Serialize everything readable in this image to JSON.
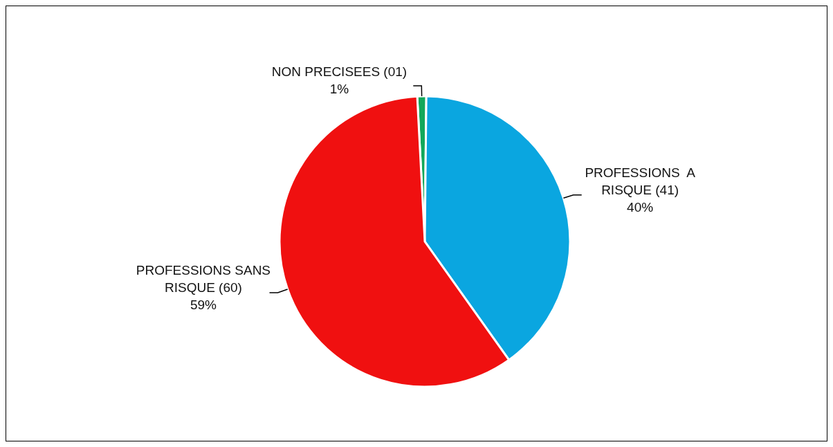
{
  "chart_data": {
    "type": "pie",
    "categories": [
      "NON PRECISEES (01)",
      "PROFESSIONS  A RISQUE (41)",
      "PROFESSIONS SANS RISQUE (60)"
    ],
    "values": [
      1,
      40,
      59
    ],
    "colors": [
      "#12a85a",
      "#0aa6e0",
      "#f01010"
    ],
    "value_labels": [
      "1%",
      "40%",
      "59%"
    ]
  }
}
